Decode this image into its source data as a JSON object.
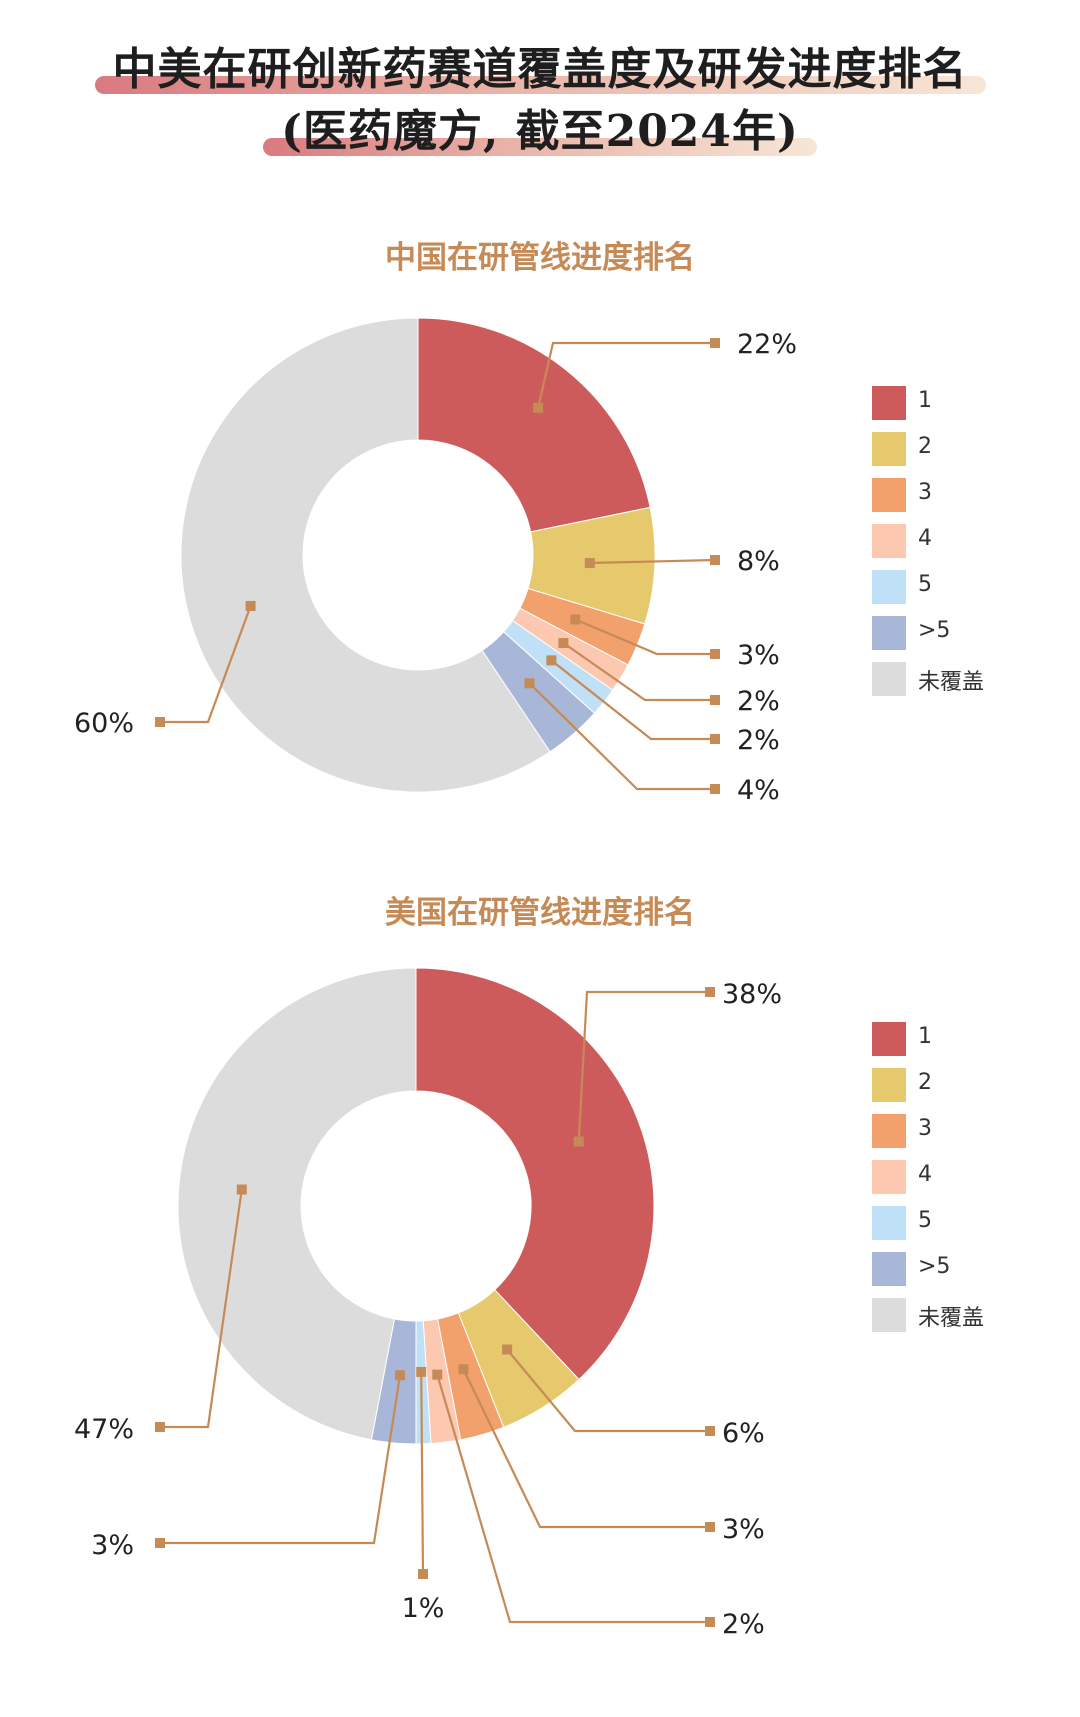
{
  "header": {
    "title_line1": "中美在研创新药赛道覆盖度及研发进度排名",
    "title_line2": "(医药魔方, 截至2024年)"
  },
  "colors": {
    "1": "#cd5b5b",
    "2": "#e6c86d",
    "3": "#f2a06c",
    "4": "#fcc8b0",
    "5": "#bfe0f7",
    ">5": "#a8b6d8",
    "未覆盖": "#dcdcdc",
    "leader": "#c68a56"
  },
  "chart_data": [
    {
      "type": "pie",
      "title": "中国在研管线进度排名",
      "donut": true,
      "categories": [
        "1",
        "2",
        "3",
        "4",
        "5",
        ">5",
        "未覆盖"
      ],
      "values": [
        22,
        8,
        3,
        2,
        2,
        4,
        60
      ],
      "labels": [
        "22%",
        "8%",
        "3%",
        "2%",
        "2%",
        "4%",
        "60%"
      ],
      "legend": [
        "1",
        "2",
        "3",
        "4",
        "5",
        ">5",
        "未覆盖"
      ],
      "legend_position": "right"
    },
    {
      "type": "pie",
      "title": "美国在研管线进度排名",
      "donut": true,
      "categories": [
        "1",
        "2",
        "3",
        "4",
        "5",
        ">5",
        "未覆盖"
      ],
      "values": [
        38,
        6,
        3,
        2,
        1,
        3,
        47
      ],
      "labels": [
        "38%",
        "6%",
        "3%",
        "2%",
        "1%",
        "3%",
        "47%"
      ],
      "legend": [
        "1",
        "2",
        "3",
        "4",
        "5",
        ">5",
        "未覆盖"
      ],
      "legend_position": "right"
    }
  ]
}
